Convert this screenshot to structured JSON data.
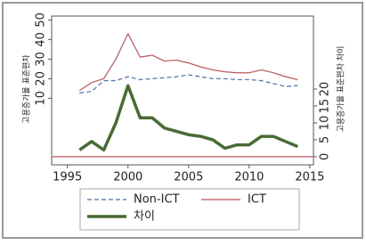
{
  "chart_data": {
    "type": "line",
    "x": [
      1996,
      1997,
      1998,
      1999,
      2000,
      2001,
      2002,
      2003,
      2004,
      2005,
      2006,
      2007,
      2008,
      2009,
      2010,
      2011,
      2012,
      2013,
      2014
    ],
    "series": [
      {
        "name": "Non-ICT",
        "color": "#4f6fa8",
        "dash": true,
        "width": 1.2,
        "values": [
          12.7,
          13.5,
          19,
          19,
          21,
          19.5,
          20,
          20.5,
          21,
          22,
          21,
          20,
          20,
          19.5,
          19.5,
          19,
          17.5,
          16,
          16.5
        ]
      },
      {
        "name": "ICT",
        "color": "#b5555a",
        "dash": false,
        "width": 1.2,
        "values": [
          14,
          18,
          20,
          30,
          43,
          31,
          32,
          29,
          29.5,
          28,
          26,
          24.5,
          23.5,
          23,
          23,
          24.5,
          23,
          21,
          19.5
        ]
      },
      {
        "name": "차이",
        "color": "#4a6b34",
        "dash": false,
        "width": 3.5,
        "axis": "y2",
        "values": [
          2,
          4.5,
          2,
          10,
          21,
          11.5,
          11.5,
          8.5,
          7.5,
          6.5,
          6,
          5,
          2.5,
          3.5,
          3.5,
          6,
          6,
          4.5,
          3
        ]
      }
    ],
    "ylabel": "고용증가율 표준편차",
    "y2label": "고용증가율 표준편차 차이",
    "xlim": [
      1993.7,
      2015.3
    ],
    "xticks": [
      1995,
      2000,
      2005,
      2010,
      2015
    ],
    "ylim": [
      -24,
      52
    ],
    "yticks": [
      10,
      20,
      30,
      40,
      50
    ],
    "y2lim": [
      -2.4,
      41.6
    ],
    "y2ticks": [
      0,
      5,
      10,
      15,
      20
    ],
    "reference_lines": [
      {
        "axis": "y2",
        "value": 0,
        "color": "#c8707a"
      }
    ]
  }
}
